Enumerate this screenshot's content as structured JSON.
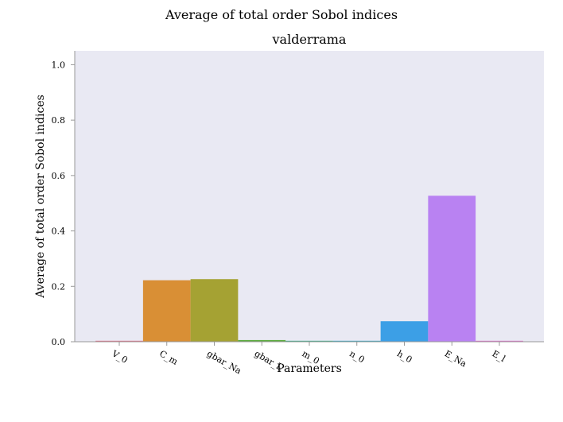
{
  "chart_data": {
    "type": "bar",
    "suptitle": "Average of total order Sobol indices",
    "title": "valderrama",
    "xlabel": "Parameters",
    "ylabel": "Average of total order Sobol indices",
    "ylim": [
      0,
      1.05
    ],
    "yticks": [
      "0.0",
      "0.2",
      "0.4",
      "0.6",
      "0.8",
      "1.0"
    ],
    "categories": [
      "V_0",
      "C_m",
      "gbar_Na",
      "gbar_L",
      "m_0",
      "n_0",
      "h_0",
      "E_Na",
      "E_l"
    ],
    "values": [
      0.003,
      0.222,
      0.226,
      0.006,
      0.0,
      0.0,
      0.074,
      0.527,
      0.003
    ],
    "colors": [
      "#e8728a",
      "#d98f35",
      "#a5a233",
      "#5bab3d",
      "#3aae8c",
      "#38aac4",
      "#3c9fe6",
      "#b982f2",
      "#e571cf"
    ],
    "background": "#e9e9f3",
    "grid": false
  }
}
